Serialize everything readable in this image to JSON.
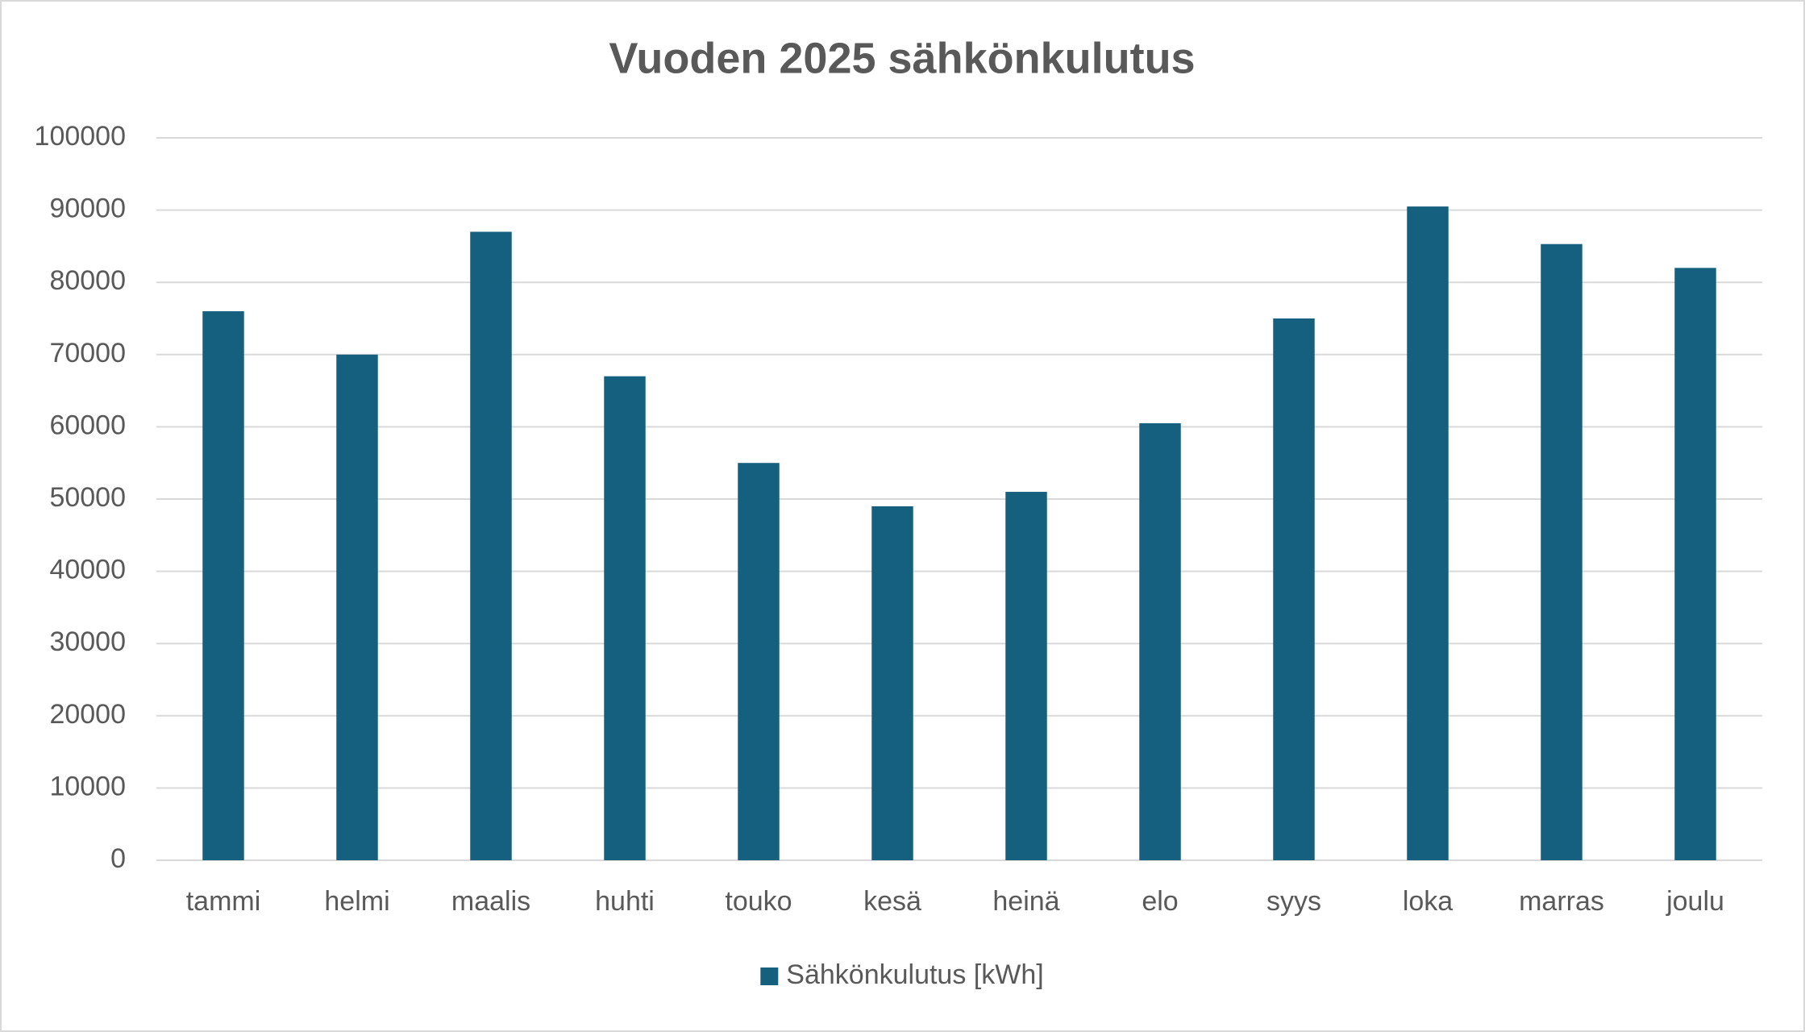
{
  "chart_data": {
    "type": "bar",
    "title": "Vuoden 2025 sähkönkulutus",
    "categories": [
      "tammi",
      "helmi",
      "maalis",
      "huhti",
      "touko",
      "kesä",
      "heinä",
      "elo",
      "syys",
      "loka",
      "marras",
      "joulu"
    ],
    "series": [
      {
        "name": "Sähkönkulutus [kWh]",
        "color": "#15607f",
        "values": [
          76000,
          70000,
          87000,
          67000,
          55000,
          49000,
          51000,
          60500,
          75000,
          90500,
          85300,
          82000
        ]
      }
    ],
    "ylim": [
      0,
      100000
    ],
    "yticks": [
      0,
      10000,
      20000,
      30000,
      40000,
      50000,
      60000,
      70000,
      80000,
      90000,
      100000
    ],
    "grid": true,
    "legend": "bottom"
  }
}
